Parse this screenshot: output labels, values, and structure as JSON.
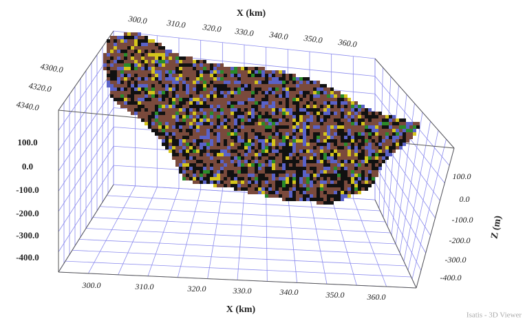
{
  "viewer": {
    "x_top": {
      "title": "X (km)",
      "ticks": [
        "300.0",
        "310.0",
        "320.0",
        "330.0",
        "340.0",
        "350.0",
        "360.0"
      ]
    },
    "x_bottom": {
      "title": "X (km)",
      "ticks": [
        "300.0",
        "310.0",
        "320.0",
        "330.0",
        "340.0",
        "350.0",
        "360.0"
      ]
    },
    "z_left": {
      "ticks": [
        "100.0",
        "0.0",
        "-100.0",
        "-200.0",
        "-300.0",
        "-400.0"
      ]
    },
    "z_right": {
      "title": "Z (m)",
      "ticks": [
        "100.0",
        "0.0",
        "-100.0",
        "-200.0",
        "-300.0",
        "-400.0"
      ]
    },
    "y_left": {
      "ticks": [
        "4300.0",
        "4320.0",
        "4340.0"
      ]
    },
    "watermark": "Isatis - 3D Viewer"
  }
}
